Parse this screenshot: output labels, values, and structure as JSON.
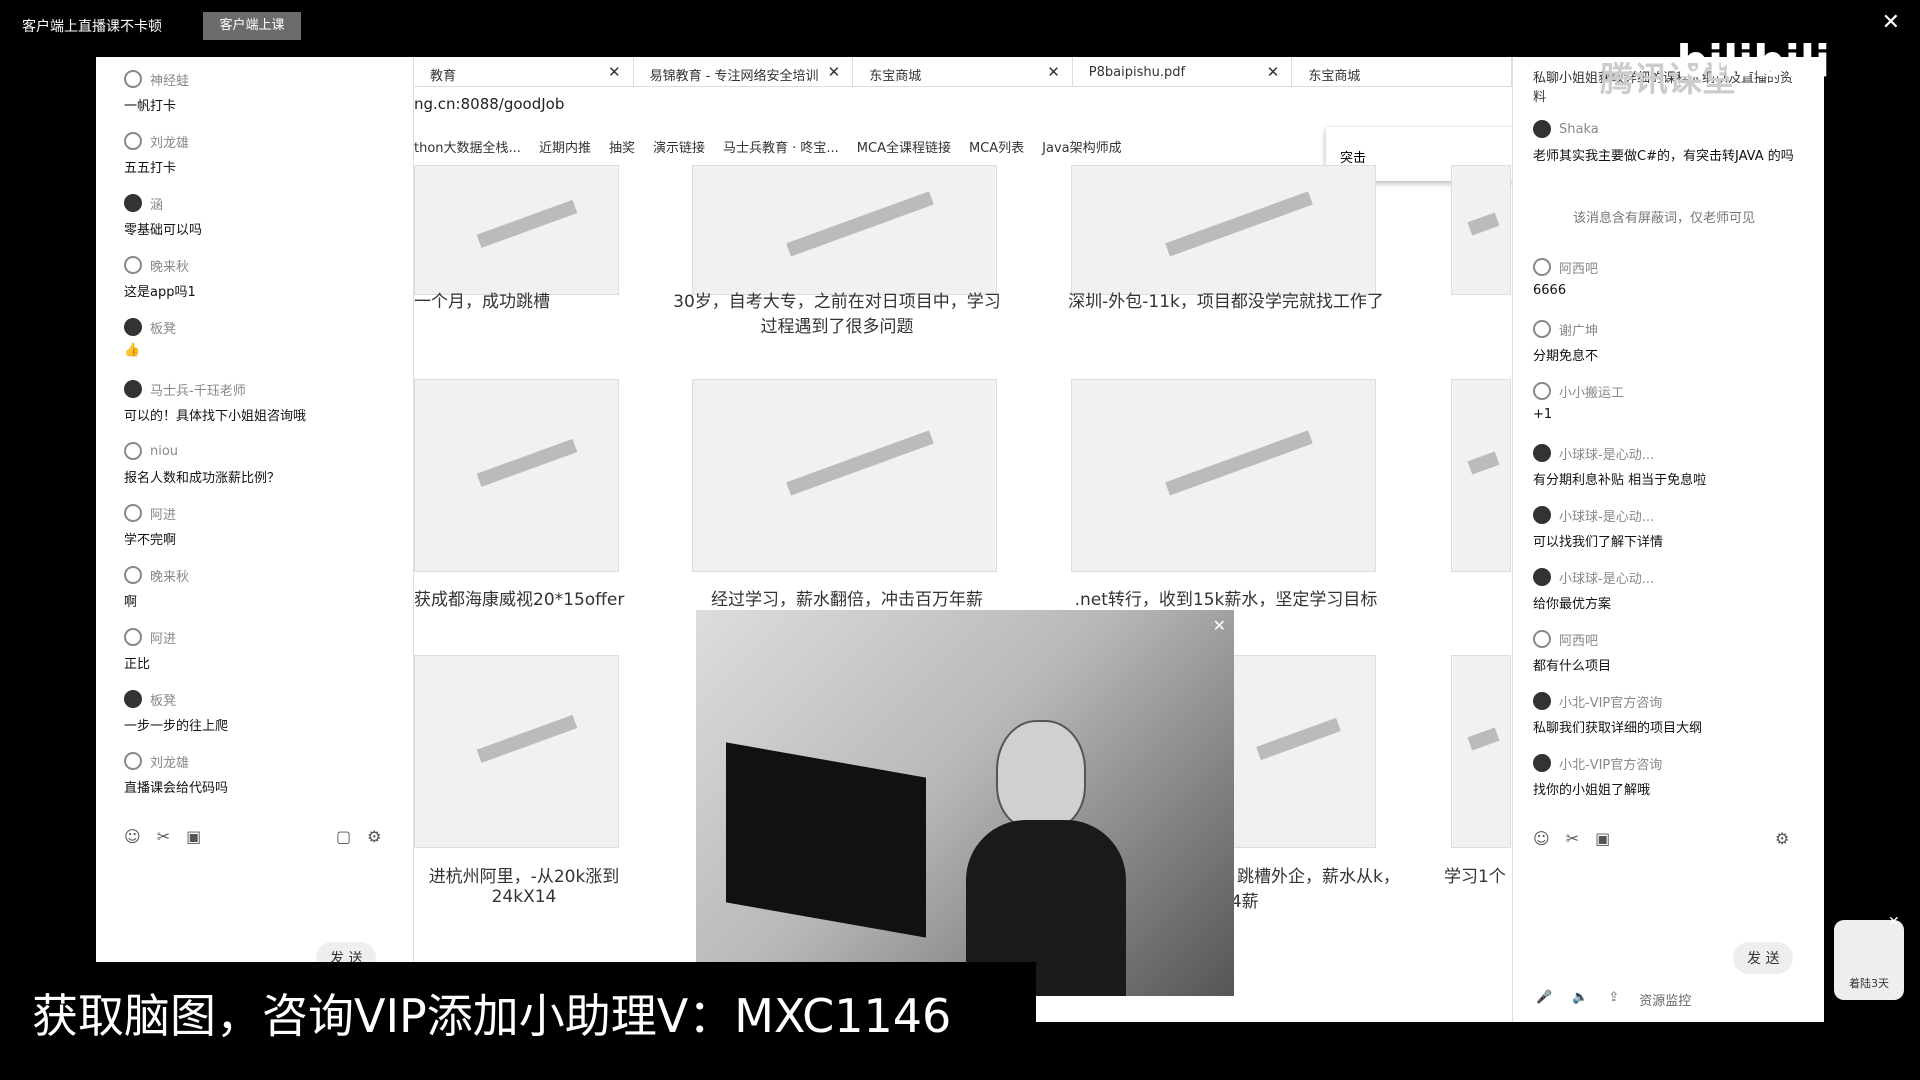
{
  "topbar": {
    "title": "客户端上直播课不卡顿",
    "button": "客户端上课"
  },
  "left_chat": {
    "messages": [
      {
        "user": "神经蛙",
        "text": "一帆打卡"
      },
      {
        "user": "刘龙雄",
        "text": "五五打卡"
      },
      {
        "user": "涵",
        "text": "零基础可以吗"
      },
      {
        "user": "晚来秋",
        "text": "这是app吗1"
      },
      {
        "user": "板凳",
        "text": "👍"
      },
      {
        "user": "马士兵-千珏老师",
        "text": "可以的！具体找下小姐姐咨询哦"
      },
      {
        "user": "niou",
        "text": "报名人数和成功涨薪比例？"
      },
      {
        "user": "阿进",
        "text": "学不完啊"
      },
      {
        "user": "晚来秋",
        "text": "啊"
      },
      {
        "user": "阿进",
        "text": "正比"
      },
      {
        "user": "板凳",
        "text": "一步一步的往上爬"
      },
      {
        "user": "刘龙雄",
        "text": "直播课会给代码吗"
      }
    ],
    "send": "发 送"
  },
  "browser": {
    "tabs": [
      "教育",
      "易锦教育 - 专注网络安全培训",
      "东宝商城",
      "P8baipishu.pdf",
      "东宝商城"
    ],
    "url": "ng.cn:8088/goodJob",
    "bookmarks": [
      "thon大数据全栈...",
      "近期内推",
      "抽奖",
      "演示链接",
      "马士兵教育 · 咚宝...",
      "MCA全课程链接",
      "MCA列表",
      "Java架构师成"
    ],
    "popup": "突击",
    "captions": {
      "r1c1": "一个月，成功跳槽",
      "r1c2": "30岁，自考大专，之前在对日项目中，学习过程遇到了很多问题",
      "r1c3": "深圳-外包-11k，项目都没学完就找工作了",
      "r2c1": "获成都海康威视20*15offer",
      "r2c2": "经过学习，薪水翻倍，冲击百万年薪",
      "r2c3": ".net转行，收到15k薪水，坚定学习目标",
      "r3c1": "进杭州阿里，-从20k涨到24kX14",
      "r3c3": "月跳槽外企，薪水从k，14薪",
      "r3c4": "学习1个"
    }
  },
  "right_chat": {
    "top_text": "私聊小姐姐获取详细的课程大纲以及直播的资料",
    "watermark": "腾讯课堂",
    "logo": "bilibili",
    "messages": [
      {
        "user": "Shaka",
        "text": "老师其实我主要做C#的，有突击转JAVA 的吗"
      },
      {
        "user": "阿西吧",
        "text": "6666"
      },
      {
        "user": "谢广坤",
        "text": "分期免息不"
      },
      {
        "user": "小小搬运工",
        "text": "+1"
      },
      {
        "user": "小球球-是心动...",
        "text": "有分期利息补贴 相当于免息啦"
      },
      {
        "user": "小球球-是心动...",
        "text": "可以找我们了解下详情"
      },
      {
        "user": "小球球-是心动...",
        "text": "给你最优方案"
      },
      {
        "user": "阿西吧",
        "text": "都有什么项目"
      },
      {
        "user": "小北-VIP官方咨询",
        "text": "私聊我们获取详细的项目大纲"
      },
      {
        "user": "小北-VIP官方咨询",
        "text": "找你的小姐姐了解哦"
      }
    ],
    "system_note": "该消息含有屏蔽词，仅老师可见",
    "send": "发 送",
    "status": "资源监控"
  },
  "banner": "获取脑图，咨询VIP添加小助理V：MXC1146",
  "badge": "着陆3天"
}
